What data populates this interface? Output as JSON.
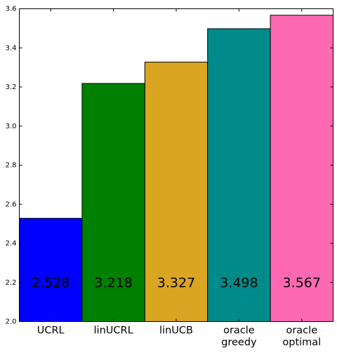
{
  "chart_data": {
    "type": "bar",
    "title": "",
    "xlabel": "",
    "ylabel": "",
    "ylim": [
      2.0,
      3.6
    ],
    "yticks": [
      "2.0",
      "2.2",
      "2.4",
      "2.6",
      "2.8",
      "3.0",
      "3.2",
      "3.4",
      "3.6"
    ],
    "grid": false,
    "categories": [
      [
        "UCRL"
      ],
      [
        "linUCRL"
      ],
      [
        "linUCB"
      ],
      [
        "oracle",
        "greedy"
      ],
      [
        "oracle",
        "optimal"
      ]
    ],
    "values": [
      2.528,
      3.218,
      3.327,
      3.498,
      3.567
    ],
    "data_labels": [
      "2.528",
      "3.218",
      "3.327",
      "3.498",
      "3.567"
    ],
    "colors": [
      "#0000ff",
      "#008000",
      "#daa520",
      "#008b8b",
      "#ff69b4"
    ]
  }
}
